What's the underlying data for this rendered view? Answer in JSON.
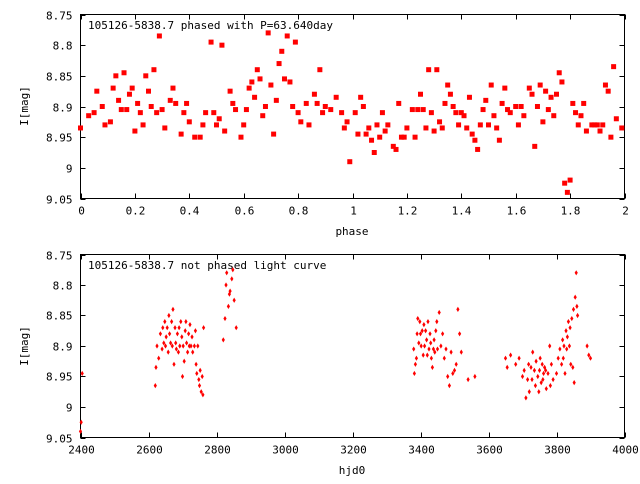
{
  "chart_data": [
    {
      "type": "scatter",
      "title": "105126-5838.7 phased with P=63.640day",
      "xlabel": "phase",
      "ylabel": "I[mag]",
      "xlim": [
        0,
        2
      ],
      "ylim": [
        9.05,
        8.75
      ],
      "y_inverted": true,
      "xticks": [
        "0",
        "0.2",
        "0.4",
        "0.6",
        "0.8",
        "1",
        "1.2",
        "1.4",
        "1.6",
        "1.8",
        "2"
      ],
      "yticks": [
        "8.75",
        "8.8",
        "8.85",
        "8.9",
        "8.95",
        "9",
        "9.05"
      ],
      "marker_color": "#ff0000",
      "points": [
        [
          0.0,
          8.935
        ],
        [
          0.03,
          8.915
        ],
        [
          0.05,
          8.91
        ],
        [
          0.06,
          8.875
        ],
        [
          0.08,
          8.9
        ],
        [
          0.09,
          8.93
        ],
        [
          0.11,
          8.925
        ],
        [
          0.12,
          8.87
        ],
        [
          0.13,
          8.85
        ],
        [
          0.14,
          8.89
        ],
        [
          0.15,
          8.905
        ],
        [
          0.16,
          8.845
        ],
        [
          0.17,
          8.905
        ],
        [
          0.18,
          8.88
        ],
        [
          0.19,
          8.87
        ],
        [
          0.2,
          8.94
        ],
        [
          0.21,
          8.895
        ],
        [
          0.22,
          8.91
        ],
        [
          0.23,
          8.93
        ],
        [
          0.24,
          8.85
        ],
        [
          0.25,
          8.875
        ],
        [
          0.26,
          8.9
        ],
        [
          0.27,
          8.84
        ],
        [
          0.28,
          8.91
        ],
        [
          0.29,
          8.785
        ],
        [
          0.3,
          8.905
        ],
        [
          0.31,
          8.935
        ],
        [
          0.33,
          8.89
        ],
        [
          0.34,
          8.87
        ],
        [
          0.35,
          8.895
        ],
        [
          0.37,
          8.945
        ],
        [
          0.38,
          8.91
        ],
        [
          0.39,
          8.895
        ],
        [
          0.4,
          8.925
        ],
        [
          0.42,
          8.95
        ],
        [
          0.44,
          8.95
        ],
        [
          0.45,
          8.93
        ],
        [
          0.46,
          8.91
        ],
        [
          0.48,
          8.795
        ],
        [
          0.49,
          8.91
        ],
        [
          0.5,
          8.93
        ],
        [
          0.51,
          8.92
        ],
        [
          0.52,
          8.8
        ],
        [
          0.53,
          8.94
        ],
        [
          0.55,
          8.875
        ],
        [
          0.56,
          8.895
        ],
        [
          0.57,
          8.905
        ],
        [
          0.59,
          8.95
        ],
        [
          0.6,
          8.93
        ],
        [
          0.61,
          8.905
        ],
        [
          0.62,
          8.87
        ],
        [
          0.63,
          8.86
        ],
        [
          0.64,
          8.885
        ],
        [
          0.65,
          8.84
        ],
        [
          0.66,
          8.855
        ],
        [
          0.67,
          8.915
        ],
        [
          0.68,
          8.9
        ],
        [
          0.69,
          8.78
        ],
        [
          0.7,
          8.865
        ],
        [
          0.71,
          8.945
        ],
        [
          0.72,
          8.89
        ],
        [
          0.73,
          8.83
        ],
        [
          0.74,
          8.81
        ],
        [
          0.75,
          8.855
        ],
        [
          0.76,
          8.785
        ],
        [
          0.77,
          8.86
        ],
        [
          0.78,
          8.9
        ],
        [
          0.79,
          8.795
        ],
        [
          0.8,
          8.91
        ],
        [
          0.81,
          8.925
        ],
        [
          0.83,
          8.895
        ],
        [
          0.84,
          8.93
        ],
        [
          0.86,
          8.88
        ],
        [
          0.87,
          8.895
        ],
        [
          0.88,
          8.84
        ],
        [
          0.89,
          8.91
        ],
        [
          0.9,
          8.9
        ],
        [
          0.92,
          8.905
        ],
        [
          0.94,
          8.885
        ],
        [
          0.96,
          8.91
        ],
        [
          0.97,
          8.935
        ],
        [
          0.98,
          8.925
        ],
        [
          0.99,
          8.99
        ],
        [
          1.01,
          8.91
        ],
        [
          1.02,
          8.945
        ],
        [
          1.03,
          8.885
        ],
        [
          1.04,
          8.9
        ],
        [
          1.05,
          8.945
        ],
        [
          1.06,
          8.935
        ],
        [
          1.07,
          8.955
        ],
        [
          1.08,
          8.975
        ],
        [
          1.09,
          8.93
        ],
        [
          1.1,
          8.95
        ],
        [
          1.11,
          8.91
        ],
        [
          1.12,
          8.94
        ],
        [
          1.13,
          8.93
        ],
        [
          1.15,
          8.965
        ],
        [
          1.16,
          8.97
        ],
        [
          1.17,
          8.895
        ],
        [
          1.18,
          8.95
        ],
        [
          1.19,
          8.95
        ],
        [
          1.2,
          8.935
        ],
        [
          1.22,
          8.905
        ],
        [
          1.23,
          8.95
        ],
        [
          1.24,
          8.905
        ],
        [
          1.25,
          8.88
        ],
        [
          1.26,
          8.905
        ],
        [
          1.27,
          8.935
        ],
        [
          1.28,
          8.84
        ],
        [
          1.29,
          8.91
        ],
        [
          1.3,
          8.94
        ],
        [
          1.31,
          8.84
        ],
        [
          1.32,
          8.925
        ],
        [
          1.33,
          8.935
        ],
        [
          1.34,
          8.895
        ],
        [
          1.35,
          8.865
        ],
        [
          1.36,
          8.88
        ],
        [
          1.37,
          8.9
        ],
        [
          1.38,
          8.91
        ],
        [
          1.39,
          8.93
        ],
        [
          1.4,
          8.91
        ],
        [
          1.41,
          8.915
        ],
        [
          1.42,
          8.935
        ],
        [
          1.43,
          8.885
        ],
        [
          1.44,
          8.945
        ],
        [
          1.45,
          8.955
        ],
        [
          1.46,
          8.97
        ],
        [
          1.47,
          8.93
        ],
        [
          1.48,
          8.905
        ],
        [
          1.49,
          8.89
        ],
        [
          1.5,
          8.93
        ],
        [
          1.51,
          8.865
        ],
        [
          1.52,
          8.915
        ],
        [
          1.53,
          8.935
        ],
        [
          1.54,
          8.955
        ],
        [
          1.55,
          8.895
        ],
        [
          1.56,
          8.87
        ],
        [
          1.57,
          8.905
        ],
        [
          1.58,
          8.91
        ],
        [
          1.6,
          8.9
        ],
        [
          1.61,
          8.93
        ],
        [
          1.62,
          8.9
        ],
        [
          1.63,
          8.915
        ],
        [
          1.65,
          8.87
        ],
        [
          1.66,
          8.88
        ],
        [
          1.67,
          8.965
        ],
        [
          1.68,
          8.9
        ],
        [
          1.69,
          8.865
        ],
        [
          1.7,
          8.925
        ],
        [
          1.71,
          8.875
        ],
        [
          1.72,
          8.905
        ],
        [
          1.73,
          8.885
        ],
        [
          1.74,
          8.915
        ],
        [
          1.75,
          8.88
        ],
        [
          1.76,
          8.845
        ],
        [
          1.77,
          8.86
        ],
        [
          1.78,
          9.025
        ],
        [
          1.79,
          9.04
        ],
        [
          1.8,
          9.02
        ],
        [
          1.81,
          8.895
        ],
        [
          1.82,
          8.91
        ],
        [
          1.83,
          8.93
        ],
        [
          1.84,
          8.915
        ],
        [
          1.85,
          8.895
        ],
        [
          1.86,
          8.94
        ],
        [
          1.88,
          8.93
        ],
        [
          1.89,
          8.93
        ],
        [
          1.9,
          8.93
        ],
        [
          1.91,
          8.94
        ],
        [
          1.92,
          8.93
        ],
        [
          1.93,
          8.865
        ],
        [
          1.94,
          8.875
        ],
        [
          1.95,
          8.95
        ],
        [
          1.96,
          8.835
        ],
        [
          1.97,
          8.92
        ],
        [
          1.99,
          8.935
        ]
      ]
    },
    {
      "type": "scatter",
      "title": "105126-5838.7 not phased light curve",
      "xlabel": "hjd0",
      "ylabel": "I[mag]",
      "xlim": [
        2400,
        4000
      ],
      "ylim": [
        9.05,
        8.75
      ],
      "y_inverted": true,
      "xticks": [
        "2400",
        "2600",
        "2800",
        "3000",
        "3200",
        "3400",
        "3600",
        "3800",
        "4000"
      ],
      "yticks": [
        "8.75",
        "8.8",
        "8.85",
        "8.9",
        "8.95",
        "9",
        "9.05"
      ],
      "marker_color": "#ff0000",
      "points": [
        [
          2400,
          9.04
        ],
        [
          2402,
          9.025
        ],
        [
          2405,
          8.945
        ],
        [
          2620,
          8.965
        ],
        [
          2622,
          8.935
        ],
        [
          2625,
          8.9
        ],
        [
          2630,
          8.92
        ],
        [
          2635,
          8.88
        ],
        [
          2640,
          8.905
        ],
        [
          2642,
          8.87
        ],
        [
          2645,
          8.895
        ],
        [
          2648,
          8.86
        ],
        [
          2650,
          8.9
        ],
        [
          2652,
          8.885
        ],
        [
          2655,
          8.87
        ],
        [
          2658,
          8.91
        ],
        [
          2660,
          8.85
        ],
        [
          2662,
          8.88
        ],
        [
          2665,
          8.895
        ],
        [
          2668,
          8.86
        ],
        [
          2670,
          8.9
        ],
        [
          2672,
          8.84
        ],
        [
          2675,
          8.93
        ],
        [
          2678,
          8.87
        ],
        [
          2680,
          8.895
        ],
        [
          2682,
          8.905
        ],
        [
          2685,
          8.88
        ],
        [
          2688,
          8.91
        ],
        [
          2690,
          8.87
        ],
        [
          2692,
          8.9
        ],
        [
          2695,
          8.86
        ],
        [
          2698,
          8.885
        ],
        [
          2700,
          8.95
        ],
        [
          2702,
          8.9
        ],
        [
          2705,
          8.925
        ],
        [
          2708,
          8.875
        ],
        [
          2710,
          8.86
        ],
        [
          2712,
          8.895
        ],
        [
          2715,
          8.91
        ],
        [
          2718,
          8.88
        ],
        [
          2720,
          8.9
        ],
        [
          2722,
          8.865
        ],
        [
          2725,
          8.9
        ],
        [
          2728,
          8.885
        ],
        [
          2730,
          8.91
        ],
        [
          2735,
          8.9
        ],
        [
          2738,
          8.875
        ],
        [
          2740,
          8.93
        ],
        [
          2742,
          8.945
        ],
        [
          2745,
          8.9
        ],
        [
          2748,
          8.955
        ],
        [
          2750,
          8.965
        ],
        [
          2752,
          8.94
        ],
        [
          2755,
          8.975
        ],
        [
          2758,
          8.95
        ],
        [
          2760,
          8.98
        ],
        [
          2762,
          8.87
        ],
        [
          2820,
          8.89
        ],
        [
          2825,
          8.855
        ],
        [
          2828,
          8.8
        ],
        [
          2830,
          8.78
        ],
        [
          2835,
          8.835
        ],
        [
          2838,
          8.815
        ],
        [
          2840,
          8.81
        ],
        [
          2845,
          8.79
        ],
        [
          2848,
          8.775
        ],
        [
          2852,
          8.825
        ],
        [
          2858,
          8.87
        ],
        [
          3380,
          8.905
        ],
        [
          3382,
          8.945
        ],
        [
          3385,
          8.93
        ],
        [
          3388,
          8.92
        ],
        [
          3390,
          8.88
        ],
        [
          3392,
          8.855
        ],
        [
          3395,
          8.895
        ],
        [
          3398,
          8.86
        ],
        [
          3400,
          8.88
        ],
        [
          3402,
          8.9
        ],
        [
          3405,
          8.875
        ],
        [
          3408,
          8.915
        ],
        [
          3410,
          8.865
        ],
        [
          3412,
          8.9
        ],
        [
          3415,
          8.875
        ],
        [
          3418,
          8.89
        ],
        [
          3420,
          8.915
        ],
        [
          3422,
          8.86
        ],
        [
          3425,
          8.905
        ],
        [
          3428,
          8.88
        ],
        [
          3430,
          8.895
        ],
        [
          3432,
          8.92
        ],
        [
          3435,
          8.935
        ],
        [
          3438,
          8.905
        ],
        [
          3440,
          8.89
        ],
        [
          3442,
          8.91
        ],
        [
          3445,
          8.875
        ],
        [
          3448,
          8.86
        ],
        [
          3450,
          8.905
        ],
        [
          3455,
          8.845
        ],
        [
          3460,
          8.9
        ],
        [
          3465,
          8.88
        ],
        [
          3470,
          8.92
        ],
        [
          3475,
          8.905
        ],
        [
          3480,
          8.95
        ],
        [
          3485,
          8.965
        ],
        [
          3490,
          8.91
        ],
        [
          3495,
          8.945
        ],
        [
          3500,
          8.94
        ],
        [
          3505,
          8.93
        ],
        [
          3510,
          8.84
        ],
        [
          3515,
          8.88
        ],
        [
          3520,
          8.91
        ],
        [
          3540,
          8.955
        ],
        [
          3560,
          8.95
        ],
        [
          3650,
          8.92
        ],
        [
          3655,
          8.935
        ],
        [
          3665,
          8.915
        ],
        [
          3680,
          8.93
        ],
        [
          3690,
          8.92
        ],
        [
          3700,
          8.95
        ],
        [
          3705,
          8.94
        ],
        [
          3710,
          8.985
        ],
        [
          3715,
          8.955
        ],
        [
          3718,
          8.93
        ],
        [
          3720,
          8.975
        ],
        [
          3725,
          8.935
        ],
        [
          3728,
          8.955
        ],
        [
          3730,
          8.91
        ],
        [
          3735,
          8.94
        ],
        [
          3738,
          8.965
        ],
        [
          3740,
          8.925
        ],
        [
          3745,
          8.95
        ],
        [
          3748,
          8.975
        ],
        [
          3750,
          8.94
        ],
        [
          3752,
          8.92
        ],
        [
          3755,
          8.96
        ],
        [
          3758,
          8.93
        ],
        [
          3760,
          8.955
        ],
        [
          3762,
          8.945
        ],
        [
          3765,
          8.935
        ],
        [
          3768,
          8.94
        ],
        [
          3770,
          8.97
        ],
        [
          3775,
          8.945
        ],
        [
          3780,
          8.9
        ],
        [
          3782,
          8.965
        ],
        [
          3785,
          8.93
        ],
        [
          3790,
          8.955
        ],
        [
          3800,
          8.945
        ],
        [
          3805,
          8.92
        ],
        [
          3810,
          8.905
        ],
        [
          3815,
          8.93
        ],
        [
          3818,
          8.89
        ],
        [
          3820,
          8.92
        ],
        [
          3822,
          8.9
        ],
        [
          3825,
          8.945
        ],
        [
          3828,
          8.875
        ],
        [
          3830,
          8.905
        ],
        [
          3832,
          8.885
        ],
        [
          3835,
          8.86
        ],
        [
          3838,
          8.9
        ],
        [
          3840,
          8.87
        ],
        [
          3842,
          8.93
        ],
        [
          3845,
          8.855
        ],
        [
          3848,
          8.935
        ],
        [
          3850,
          8.84
        ],
        [
          3852,
          8.96
        ],
        [
          3855,
          8.82
        ],
        [
          3858,
          8.78
        ],
        [
          3860,
          8.835
        ],
        [
          3862,
          8.85
        ],
        [
          3890,
          8.9
        ],
        [
          3895,
          8.915
        ],
        [
          3900,
          8.92
        ]
      ]
    }
  ]
}
